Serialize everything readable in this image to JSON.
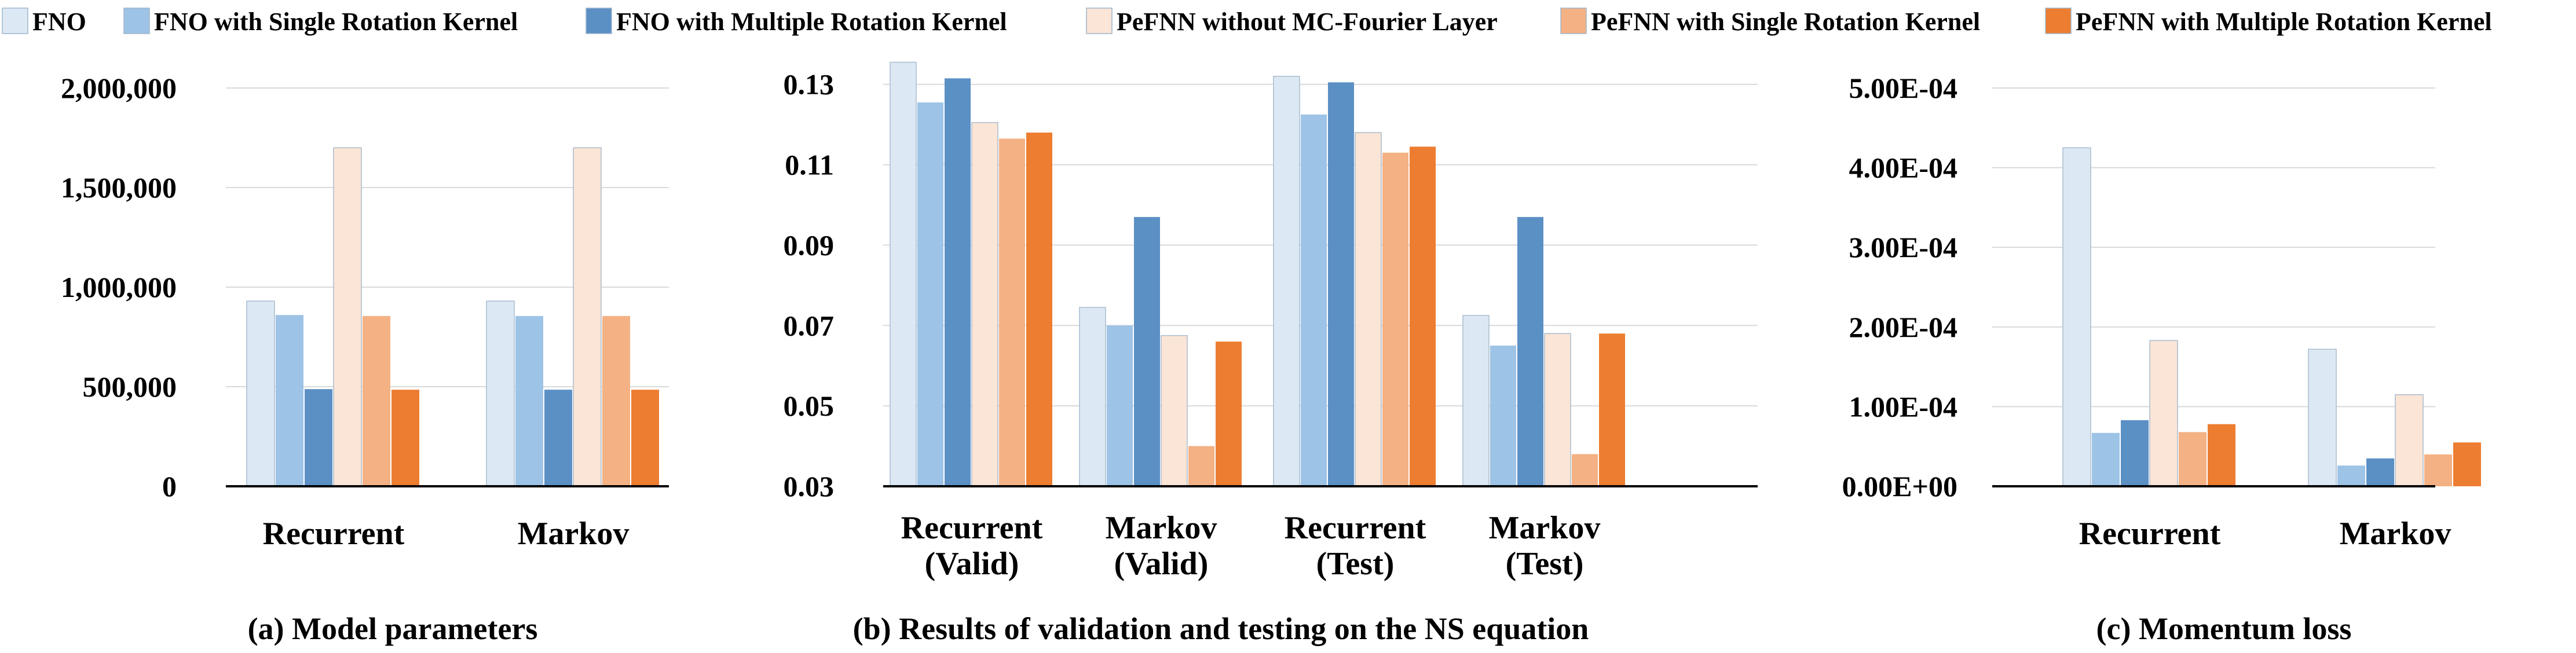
{
  "series_colors": {
    "FNO": "#dce9f5",
    "FNO_single": "#9dc3e6",
    "FNO_multi": "#5b90c5",
    "PeFNN_nomc": "#fbe5d6",
    "PeFNN_single": "#f4b183",
    "PeFNN_multi": "#ed7d31"
  },
  "legend": [
    {
      "name": "FNO",
      "color_key": "FNO"
    },
    {
      "name": "FNO with Single Rotation Kernel",
      "color_key": "FNO_single"
    },
    {
      "name": "FNO with Multiple Rotation Kernel",
      "color_key": "FNO_multi"
    },
    {
      "name": "PeFNN without MC-Fourier Layer",
      "color_key": "PeFNN_nomc"
    },
    {
      "name": "PeFNN with Single Rotation Kernel",
      "color_key": "PeFNN_single"
    },
    {
      "name": "PeFNN with Multiple Rotation Kernel",
      "color_key": "PeFNN_multi"
    }
  ],
  "chart_data": [
    {
      "type": "bar",
      "caption": "(a) Model parameters",
      "categories": [
        "Recurrent",
        "Markov"
      ],
      "ylim": [
        0,
        2000000
      ],
      "yticks": [
        0,
        500000,
        1000000,
        1500000,
        2000000
      ],
      "ytick_labels": [
        "0",
        "500,000",
        "1,000,000",
        "1,500,000",
        "2,000,000"
      ],
      "grid": true,
      "series": [
        {
          "name": "FNO",
          "values": [
            930000,
            930000
          ]
        },
        {
          "name": "FNO with Single Rotation Kernel",
          "values": [
            860000,
            855000
          ]
        },
        {
          "name": "FNO with Multiple Rotation Kernel",
          "values": [
            488000,
            485000
          ]
        },
        {
          "name": "PeFNN without MC-Fourier Layer",
          "values": [
            1700000,
            1700000
          ]
        },
        {
          "name": "PeFNN with Single Rotation Kernel",
          "values": [
            855000,
            855000
          ]
        },
        {
          "name": "PeFNN with Multiple Rotation Kernel",
          "values": [
            485000,
            485000
          ]
        }
      ]
    },
    {
      "type": "bar",
      "caption": "(b) Results of validation and testing on the NS equation",
      "categories": [
        "Recurrent\n(Valid)",
        "Markov\n(Valid)",
        "Recurrent\n(Test)",
        "Markov\n(Test)"
      ],
      "ylim": [
        0.03,
        0.135
      ],
      "yticks": [
        0.03,
        0.05,
        0.07,
        0.09,
        0.11,
        0.13
      ],
      "ytick_labels": [
        "0.03",
        "0.05",
        "0.07",
        "0.09",
        "0.11",
        "0.13"
      ],
      "grid": true,
      "series": [
        {
          "name": "FNO",
          "values": [
            0.1355,
            0.0745,
            0.132,
            0.0725
          ]
        },
        {
          "name": "FNO with Single Rotation Kernel",
          "values": [
            0.1255,
            0.07,
            0.1225,
            0.065
          ]
        },
        {
          "name": "FNO with Multiple Rotation Kernel",
          "values": [
            0.1315,
            0.097,
            0.1305,
            0.097
          ]
        },
        {
          "name": "PeFNN without MC-Fourier Layer",
          "values": [
            0.1205,
            0.0675,
            0.118,
            0.068
          ]
        },
        {
          "name": "PeFNN with Single Rotation Kernel",
          "values": [
            0.1165,
            0.04,
            0.113,
            0.038
          ]
        },
        {
          "name": "PeFNN with Multiple Rotation Kernel",
          "values": [
            0.118,
            0.066,
            0.1145,
            0.068
          ]
        }
      ]
    },
    {
      "type": "bar",
      "caption": "(c) Momentum loss",
      "categories": [
        "Recurrent",
        "Markov"
      ],
      "ylim": [
        0,
        0.0005
      ],
      "yticks": [
        0,
        0.0001,
        0.0002,
        0.0003,
        0.0004,
        0.0005
      ],
      "ytick_labels": [
        "0.00E+00",
        "1.00E-04",
        "2.00E-04",
        "3.00E-04",
        "4.00E-04",
        "5.00E-04"
      ],
      "grid": true,
      "series": [
        {
          "name": "FNO",
          "values": [
            0.000425,
            0.000172
          ]
        },
        {
          "name": "FNO with Single Rotation Kernel",
          "values": [
            6.7e-05,
            2.6e-05
          ]
        },
        {
          "name": "FNO with Multiple Rotation Kernel",
          "values": [
            8.3e-05,
            3.5e-05
          ]
        },
        {
          "name": "PeFNN without MC-Fourier Layer",
          "values": [
            0.000183,
            0.000115
          ]
        },
        {
          "name": "PeFNN with Single Rotation Kernel",
          "values": [
            6.8e-05,
            4e-05
          ]
        },
        {
          "name": "PeFNN with Multiple Rotation Kernel",
          "values": [
            7.8e-05,
            5.5e-05
          ]
        }
      ]
    }
  ]
}
